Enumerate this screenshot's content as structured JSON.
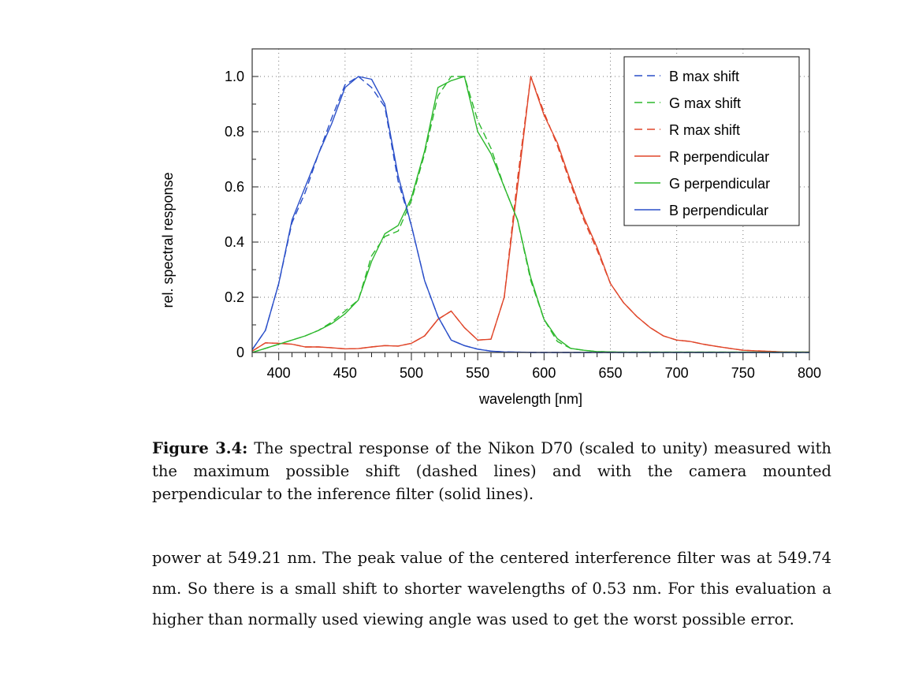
{
  "chart_data": {
    "type": "line",
    "xlabel": "wavelength [nm]",
    "ylabel": "rel. spectral response",
    "xlim": [
      380,
      800
    ],
    "ylim": [
      0,
      1.1
    ],
    "xticks": [
      400,
      450,
      500,
      550,
      600,
      650,
      700,
      750,
      800
    ],
    "yticks": [
      0,
      0.2,
      0.4,
      0.6,
      0.8,
      1.0
    ],
    "ytick_labels": [
      "0",
      "0.2",
      "0.4",
      "0.6",
      "0.8",
      "1.0"
    ],
    "grid": true,
    "legend_position": "top-right",
    "x": [
      380,
      390,
      400,
      410,
      420,
      430,
      440,
      450,
      460,
      470,
      480,
      490,
      500,
      510,
      520,
      530,
      540,
      550,
      560,
      570,
      580,
      590,
      600,
      610,
      620,
      630,
      640,
      650,
      660,
      670,
      680,
      690,
      700,
      710,
      720,
      730,
      740,
      750,
      760,
      770,
      780,
      790,
      800
    ],
    "series": [
      {
        "name": "B max shift",
        "color": "#2a4fc9",
        "dashed": true,
        "values": [
          0.01,
          0.08,
          0.25,
          0.47,
          0.58,
          0.72,
          0.85,
          0.97,
          1.0,
          0.96,
          0.89,
          0.62,
          0.46,
          0.26,
          0.13,
          0.045,
          0.025,
          0.012,
          0.005,
          0.002,
          0.001,
          0,
          0,
          0,
          0,
          0,
          0,
          0,
          0,
          0,
          0,
          0,
          0,
          0,
          0,
          0,
          0,
          0,
          0,
          0,
          0,
          0,
          0
        ]
      },
      {
        "name": "G max shift",
        "color": "#2db82d",
        "dashed": true,
        "values": [
          0,
          0.015,
          0.03,
          0.045,
          0.06,
          0.08,
          0.11,
          0.15,
          0.19,
          0.35,
          0.42,
          0.44,
          0.55,
          0.72,
          0.93,
          1.0,
          1.0,
          0.84,
          0.74,
          0.6,
          0.48,
          0.26,
          0.12,
          0.04,
          0.015,
          0.008,
          0.003,
          0.002,
          0.001,
          0.001,
          0.001,
          0.001,
          0.001,
          0.001,
          0.001,
          0.001,
          0.001,
          0.001,
          0.001,
          0.001,
          0.001,
          0.001,
          0.001
        ]
      },
      {
        "name": "R max shift",
        "color": "#e0462a",
        "dashed": true,
        "values": [
          0.005,
          0.035,
          0.033,
          0.03,
          0.02,
          0.02,
          0.017,
          0.013,
          0.014,
          0.02,
          0.025,
          0.023,
          0.033,
          0.06,
          0.12,
          0.15,
          0.09,
          0.045,
          0.048,
          0.2,
          0.63,
          1.0,
          0.87,
          0.75,
          0.61,
          0.48,
          0.37,
          0.25,
          0.18,
          0.13,
          0.09,
          0.06,
          0.045,
          0.04,
          0.03,
          0.022,
          0.015,
          0.008,
          0.006,
          0.004,
          0.002,
          0.001,
          0.001
        ]
      },
      {
        "name": "R perpendicular",
        "color": "#e0462a",
        "dashed": false,
        "values": [
          0.005,
          0.035,
          0.033,
          0.03,
          0.02,
          0.02,
          0.017,
          0.013,
          0.014,
          0.02,
          0.025,
          0.023,
          0.033,
          0.06,
          0.12,
          0.15,
          0.09,
          0.045,
          0.048,
          0.2,
          0.6,
          1.0,
          0.86,
          0.76,
          0.62,
          0.49,
          0.38,
          0.25,
          0.18,
          0.13,
          0.09,
          0.06,
          0.045,
          0.04,
          0.03,
          0.022,
          0.015,
          0.008,
          0.006,
          0.004,
          0.002,
          0.001,
          0.001
        ]
      },
      {
        "name": "G perpendicular",
        "color": "#2db82d",
        "dashed": false,
        "values": [
          0,
          0.015,
          0.03,
          0.045,
          0.06,
          0.08,
          0.105,
          0.14,
          0.19,
          0.33,
          0.43,
          0.46,
          0.56,
          0.73,
          0.96,
          0.985,
          1.0,
          0.8,
          0.72,
          0.6,
          0.48,
          0.27,
          0.12,
          0.05,
          0.015,
          0.008,
          0.003,
          0.002,
          0.001,
          0.001,
          0.001,
          0.001,
          0.001,
          0.001,
          0.001,
          0.001,
          0.001,
          0.001,
          0.001,
          0.001,
          0.001,
          0.001,
          0.001
        ]
      },
      {
        "name": "B perpendicular",
        "color": "#2a4fc9",
        "dashed": false,
        "values": [
          0.01,
          0.08,
          0.25,
          0.48,
          0.6,
          0.72,
          0.83,
          0.96,
          1.0,
          0.99,
          0.9,
          0.64,
          0.46,
          0.26,
          0.13,
          0.045,
          0.025,
          0.012,
          0.005,
          0.002,
          0.001,
          0,
          0,
          0,
          0,
          0,
          0,
          0,
          0,
          0,
          0,
          0,
          0,
          0,
          0,
          0,
          0,
          0,
          0,
          0,
          0,
          0,
          0
        ]
      }
    ]
  },
  "caption": {
    "label": "Figure 3.4:",
    "text": " The spectral response of the Nikon D70 (scaled to unity) measured with the maximum possible shift (dashed lines) and with the camera mounted perpendicular to the inference filter (solid lines)."
  },
  "body": {
    "paragraph": "power at 549.21 nm. The peak value of the centered interference filter was at 549.74 nm. So there is a small shift to shorter wavelengths of 0.53 nm. For this evaluation a higher than normally used viewing angle was used to get the worst possible error."
  }
}
